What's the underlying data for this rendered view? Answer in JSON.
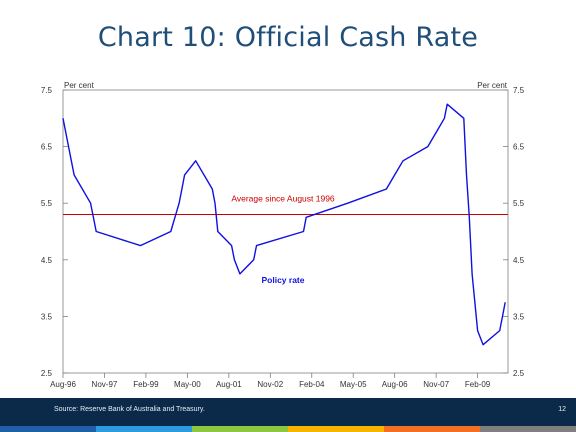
{
  "slide": {
    "title": "Chart 10: Official Cash Rate",
    "source": "Source: Reserve Bank of Australia and Treasury.",
    "page_number": "12"
  },
  "colors": {
    "title": "#1f4e79",
    "policy_line": "#1010e0",
    "average_line": "#cc0000",
    "footer": "#0b2a4a",
    "stripes": [
      "#1f5fa8",
      "#2e9be0",
      "#8dc63f",
      "#f7b500",
      "#f36f21",
      "#7f7f7f"
    ]
  },
  "chart_data": {
    "type": "line",
    "ylim": [
      2.5,
      7.5
    ],
    "yticks": [
      2.5,
      3.5,
      4.5,
      5.5,
      6.5,
      7.5
    ],
    "ytick_labels": [
      "2.5",
      "3.5",
      "4.5",
      "5.5",
      "6.5",
      "7.5"
    ],
    "left_unit": "Per cent",
    "right_unit": "Per cent",
    "xlim": [
      "1996-08",
      "2010-01"
    ],
    "xtick_labels": [
      "Aug-96",
      "Nov-97",
      "Feb-99",
      "May-00",
      "Aug-01",
      "Nov-02",
      "Feb-04",
      "May-05",
      "Aug-06",
      "Nov-07",
      "Feb-09"
    ],
    "xtick_dates": [
      "1996-08",
      "1997-11",
      "1999-02",
      "2000-05",
      "2001-08",
      "2002-11",
      "2004-02",
      "2005-05",
      "2006-08",
      "2007-11",
      "2009-02"
    ],
    "grid": false,
    "series": [
      {
        "name": "Policy rate",
        "label": "Policy rate",
        "points": [
          [
            "1996-08",
            7.0
          ],
          [
            "1996-12",
            6.0
          ],
          [
            "1997-06",
            5.5
          ],
          [
            "1997-08",
            5.0
          ],
          [
            "1998-12",
            4.75
          ],
          [
            "1999-11",
            5.0
          ],
          [
            "2000-02",
            5.5
          ],
          [
            "2000-03",
            5.75
          ],
          [
            "2000-04",
            6.0
          ],
          [
            "2000-08",
            6.25
          ],
          [
            "2001-02",
            5.75
          ],
          [
            "2001-03",
            5.5
          ],
          [
            "2001-04",
            5.0
          ],
          [
            "2001-09",
            4.75
          ],
          [
            "2001-10",
            4.5
          ],
          [
            "2001-12",
            4.25
          ],
          [
            "2002-05",
            4.5
          ],
          [
            "2002-06",
            4.75
          ],
          [
            "2003-11",
            5.0
          ],
          [
            "2003-12",
            5.25
          ],
          [
            "2005-03",
            5.5
          ],
          [
            "2006-05",
            5.75
          ],
          [
            "2006-08",
            6.0
          ],
          [
            "2006-11",
            6.25
          ],
          [
            "2007-08",
            6.5
          ],
          [
            "2007-11",
            6.75
          ],
          [
            "2008-02",
            7.0
          ],
          [
            "2008-03",
            7.25
          ],
          [
            "2008-09",
            7.0
          ],
          [
            "2008-10",
            6.0
          ],
          [
            "2008-11",
            5.25
          ],
          [
            "2008-12",
            4.25
          ],
          [
            "2009-02",
            3.25
          ],
          [
            "2009-04",
            3.0
          ],
          [
            "2009-10",
            3.25
          ],
          [
            "2009-11",
            3.5
          ],
          [
            "2009-12",
            3.75
          ]
        ]
      },
      {
        "name": "Average since August 1996",
        "label": "Average since August 1996",
        "value": 5.3
      }
    ]
  }
}
